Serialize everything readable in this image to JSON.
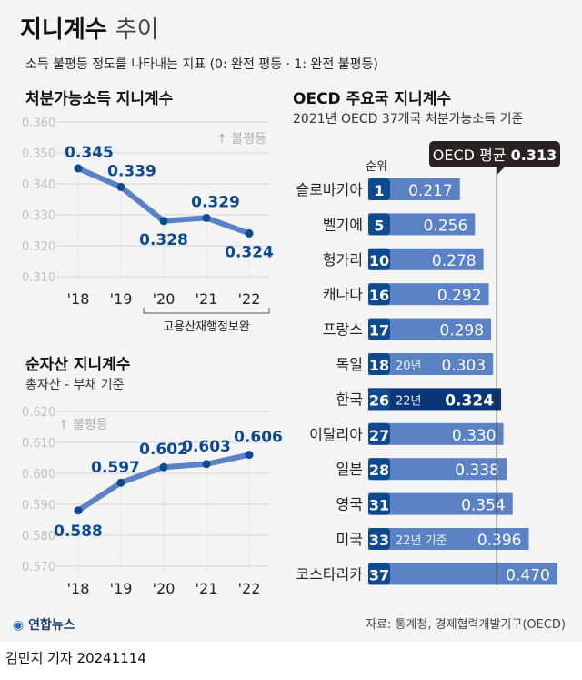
{
  "header": {
    "title": "지니계수",
    "title_light": "추이",
    "subtitle": "소득 불평등 정도를 나타내는 지표 (0: 완전 평등 · 1: 완전 불평등)"
  },
  "colors": {
    "line": "#5b82c4",
    "point": "#0d4a8f",
    "label": "#0d4a8f",
    "bar": "#5b82c4",
    "badge": "#0d4a8f",
    "highlight": "#0a3578",
    "axis": "#b5b5b5"
  },
  "chart_data": [
    {
      "type": "line",
      "title": "처분가능소득 지니계수",
      "categories": [
        "'18",
        "'19",
        "'20",
        "'21",
        "'22"
      ],
      "values": [
        0.345,
        0.339,
        0.328,
        0.329,
        0.324
      ],
      "ylim": [
        0.31,
        0.36
      ],
      "yticks": [
        "0.360",
        "0.350",
        "0.340",
        "0.330",
        "0.320",
        "0.310"
      ],
      "grid": true,
      "annotation": "↑ 불평등",
      "bracket_note": "고용산재행정보완"
    },
    {
      "type": "line",
      "title": "순자산 지니계수",
      "subtitle": "총자산 - 부채 기준",
      "categories": [
        "'18",
        "'19",
        "'20",
        "'21",
        "'22"
      ],
      "values": [
        0.588,
        0.597,
        0.602,
        0.603,
        0.606
      ],
      "ylim": [
        0.57,
        0.62
      ],
      "yticks": [
        "0.620",
        "0.610",
        "0.600",
        "0.590",
        "0.580",
        "0.570"
      ],
      "grid": true,
      "annotation": "↑ 불평등"
    },
    {
      "type": "bar",
      "title": "OECD 주요국 지니계수",
      "subtitle": "2021년 OECD 37개국 처분가능소득 기준",
      "rank_header": "순위",
      "average_label": "OECD 평균",
      "average": 0.313,
      "rows": [
        {
          "country": "슬로바키아",
          "rank": "1",
          "value": 0.217,
          "note": ""
        },
        {
          "country": "벨기에",
          "rank": "5",
          "value": 0.256,
          "note": ""
        },
        {
          "country": "헝가리",
          "rank": "10",
          "value": 0.278,
          "note": ""
        },
        {
          "country": "캐나다",
          "rank": "16",
          "value": 0.292,
          "note": ""
        },
        {
          "country": "프랑스",
          "rank": "17",
          "value": 0.298,
          "note": ""
        },
        {
          "country": "독일",
          "rank": "18",
          "value": 0.303,
          "note": "20년"
        },
        {
          "country": "한국",
          "rank": "26",
          "value": 0.324,
          "note": "22년",
          "highlight": true
        },
        {
          "country": "이탈리아",
          "rank": "27",
          "value": 0.33,
          "note": ""
        },
        {
          "country": "일본",
          "rank": "28",
          "value": 0.338,
          "note": ""
        },
        {
          "country": "영국",
          "rank": "31",
          "value": 0.354,
          "note": ""
        },
        {
          "country": "미국",
          "rank": "33",
          "value": 0.396,
          "note": "22년 기준"
        },
        {
          "country": "코스타리카",
          "rank": "37",
          "value": 0.47,
          "note": ""
        }
      ]
    }
  ],
  "footer": {
    "source": "자료: 통계청, 경제협력개발기구(OECD)",
    "logo": "연합뉴스",
    "byline": "김민지 기자  20241114"
  }
}
